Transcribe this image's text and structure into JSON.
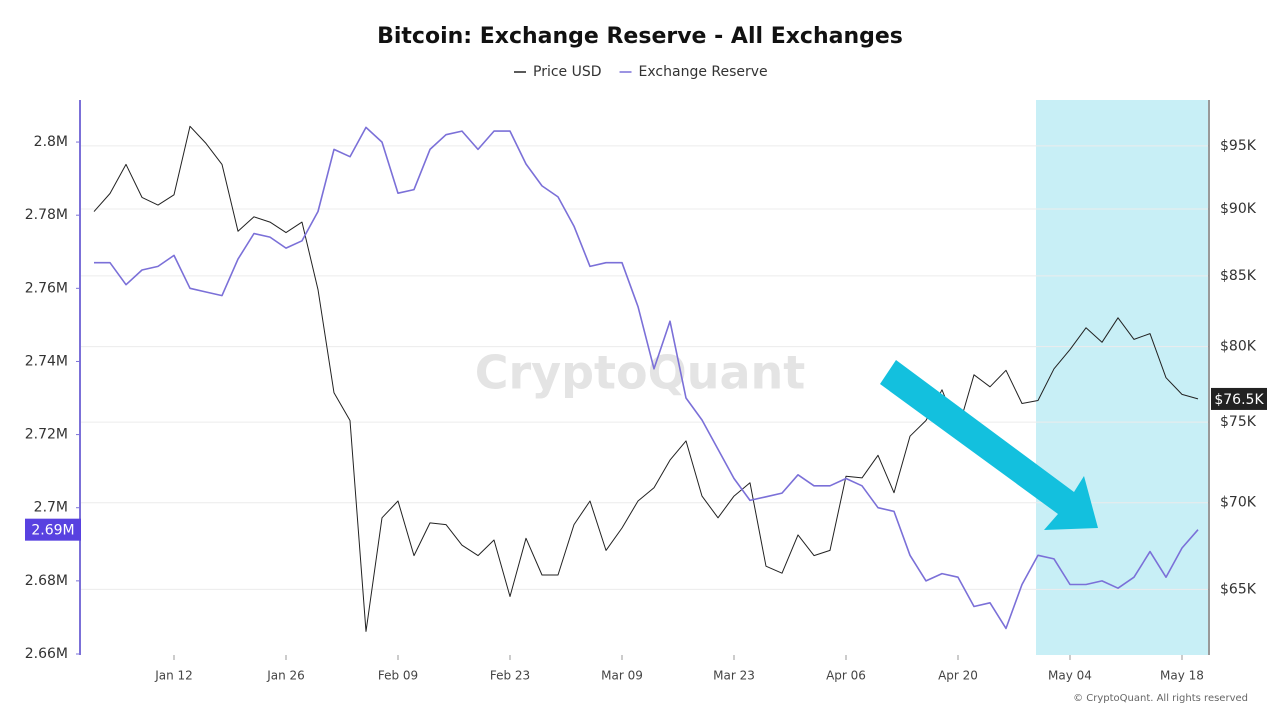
{
  "chart_data": {
    "type": "line",
    "title": "Bitcoin: Exchange Reserve - All Exchanges",
    "watermark": "CryptoQuant",
    "footer": "© CryptoQuant. All rights reserved",
    "x": [
      "Jan 02",
      "Jan 04",
      "Jan 06",
      "Jan 08",
      "Jan 10",
      "Jan 12",
      "Jan 14",
      "Jan 16",
      "Jan 18",
      "Jan 20",
      "Jan 22",
      "Jan 24",
      "Jan 26",
      "Jan 28",
      "Jan 30",
      "Feb 01",
      "Feb 03",
      "Feb 05",
      "Feb 07",
      "Feb 09",
      "Feb 11",
      "Feb 13",
      "Feb 15",
      "Feb 17",
      "Feb 19",
      "Feb 21",
      "Feb 23",
      "Feb 25",
      "Feb 27",
      "Mar 01",
      "Mar 03",
      "Mar 05",
      "Mar 07",
      "Mar 09",
      "Mar 11",
      "Mar 13",
      "Mar 15",
      "Mar 17",
      "Mar 19",
      "Mar 21",
      "Mar 23",
      "Mar 25",
      "Mar 27",
      "Mar 29",
      "Mar 31",
      "Apr 02",
      "Apr 04",
      "Apr 06",
      "Apr 08",
      "Apr 10",
      "Apr 12",
      "Apr 14",
      "Apr 16",
      "Apr 18",
      "Apr 20",
      "Apr 22",
      "Apr 24",
      "Apr 26",
      "Apr 28",
      "Apr 30",
      "May 02",
      "May 04",
      "May 06",
      "May 08",
      "May 10",
      "May 12",
      "May 14",
      "May 16",
      "May 18",
      "May 20"
    ],
    "xticks": [
      "Jan 12",
      "Jan 26",
      "Feb 09",
      "Feb 23",
      "Mar 09",
      "Mar 23",
      "Apr 06",
      "Apr 20",
      "May 04",
      "May 18"
    ],
    "series": [
      {
        "name": "Price USD",
        "color": "#222222",
        "axis": "y2",
        "values": [
          89800,
          91200,
          93500,
          90900,
          90300,
          91100,
          96600,
          95200,
          93500,
          88300,
          89400,
          89000,
          88200,
          89000,
          84000,
          76900,
          75100,
          62700,
          69100,
          70100,
          66900,
          68800,
          68700,
          67500,
          66900,
          67800,
          64600,
          67900,
          65800,
          65800,
          68700,
          70100,
          67200,
          68500,
          70100,
          70900,
          72600,
          73800,
          70400,
          69100,
          70400,
          71200,
          66300,
          65900,
          68100,
          66900,
          67200,
          71600,
          71500,
          72900,
          70600,
          74100,
          75100,
          77100,
          74500,
          78100,
          77300,
          78400,
          76200,
          76400,
          78500,
          79800,
          81300,
          80300,
          82000,
          80500,
          80900,
          77900,
          76800,
          76500
        ],
        "value_labels": [
          null,
          null,
          null,
          null,
          null,
          null,
          null,
          null,
          null,
          null,
          null,
          null,
          null,
          null,
          null,
          null,
          null,
          null,
          null,
          null,
          null,
          null,
          null,
          null,
          null,
          null,
          null,
          null,
          null,
          null,
          null,
          null,
          null,
          null,
          null,
          null,
          null,
          null,
          null,
          null,
          null,
          null,
          null,
          null,
          null,
          null,
          null,
          null,
          null,
          null,
          null,
          null,
          null,
          null,
          null,
          null,
          null,
          null,
          null,
          null,
          null,
          null,
          null,
          null,
          null,
          null,
          null,
          null,
          null,
          "$76.5K"
        ]
      },
      {
        "name": "Exchange Reserve",
        "color": "#7b70d8",
        "badge_color": "#5841e0",
        "values": [
          2767000,
          2767000,
          2761000,
          2765000,
          2766000,
          2769000,
          2760000,
          2759000,
          2758000,
          2768000,
          2775000,
          2774000,
          2771000,
          2773000,
          2781000,
          2798000,
          2796000,
          2804000,
          2800000,
          2786000,
          2787000,
          2798000,
          2802000,
          2803000,
          2798000,
          2803000,
          2803000,
          2794000,
          2788000,
          2785000,
          2777000,
          2766000,
          2767000,
          2767000,
          2755000,
          2738000,
          2751000,
          2730000,
          2724000,
          2716000,
          2708000,
          2702000,
          2703000,
          2704000,
          2709000,
          2706000,
          2706000,
          2708000,
          2706000,
          2700000,
          2699000,
          2687000,
          2680000,
          2682000,
          2681000,
          2673000,
          2674000,
          2667000,
          2679000,
          2687000,
          2686000,
          2679000,
          2679000,
          2680000,
          2678000,
          2681000,
          2688000,
          2681000,
          2689000,
          2694000
        ],
        "value_labels": [
          null,
          null,
          null,
          null,
          null,
          null,
          null,
          null,
          null,
          null,
          null,
          null,
          null,
          null,
          null,
          null,
          null,
          null,
          null,
          null,
          null,
          null,
          null,
          null,
          null,
          null,
          null,
          null,
          null,
          null,
          null,
          null,
          null,
          null,
          null,
          null,
          null,
          null,
          null,
          null,
          null,
          null,
          null,
          null,
          null,
          null,
          null,
          null,
          null,
          null,
          null,
          null,
          null,
          null,
          null,
          null,
          null,
          null,
          null,
          null,
          null,
          null,
          null,
          null,
          null,
          null,
          null,
          null,
          null,
          "2.69M"
        ]
      }
    ],
    "ylim": [
      2660000,
      2811500
    ],
    "yticks": [
      {
        "value": 2660000,
        "label": "2.66M"
      },
      {
        "value": 2680000,
        "label": "2.68M"
      },
      {
        "value": 2700000,
        "label": "2.7M"
      },
      {
        "value": 2720000,
        "label": "2.72M"
      },
      {
        "value": 2740000,
        "label": "2.74M"
      },
      {
        "value": 2760000,
        "label": "2.76M"
      },
      {
        "value": 2780000,
        "label": "2.78M"
      },
      {
        "value": 2800000,
        "label": "2.8M"
      }
    ],
    "y2lim": [
      61500,
      98800
    ],
    "y2log": true,
    "y2ticks": [
      {
        "value": 65000,
        "label": "$65K"
      },
      {
        "value": 70000,
        "label": "$70K"
      },
      {
        "value": 75000,
        "label": "$75K"
      },
      {
        "value": 80000,
        "label": "$80K"
      },
      {
        "value": 85000,
        "label": "$85K"
      },
      {
        "value": 90000,
        "label": "$90K"
      },
      {
        "value": 95000,
        "label": "$95K"
      }
    ],
    "grid": true,
    "legend": "top"
  }
}
